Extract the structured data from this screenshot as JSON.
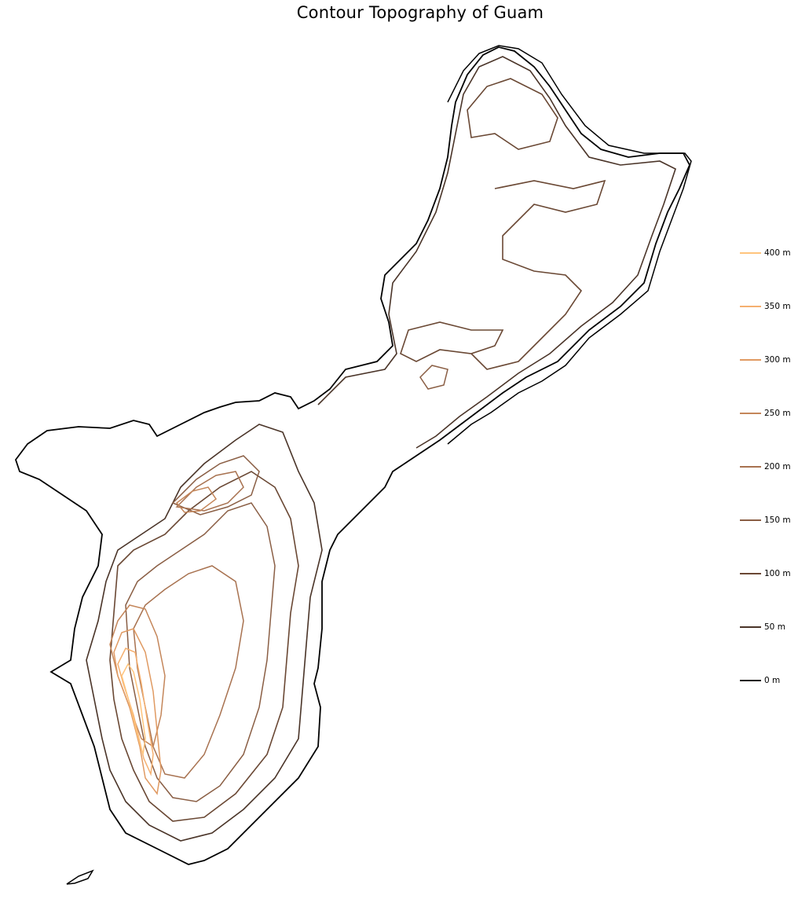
{
  "title": "Contour Topography of Guam",
  "legend": [
    {
      "label": "400 m",
      "color": "#ffc47c"
    },
    {
      "label": "350 m",
      "color": "#f5b070"
    },
    {
      "label": "300 m",
      "color": "#e09a62"
    },
    {
      "label": "250 m",
      "color": "#c4865a"
    },
    {
      "label": "200 m",
      "color": "#a87250"
    },
    {
      "label": "150 m",
      "color": "#8a5e44"
    },
    {
      "label": "100 m",
      "color": "#6a4834"
    },
    {
      "label": "50 m",
      "color": "#4a3428"
    },
    {
      "label": "0 m",
      "color": "#1a1410"
    }
  ]
}
